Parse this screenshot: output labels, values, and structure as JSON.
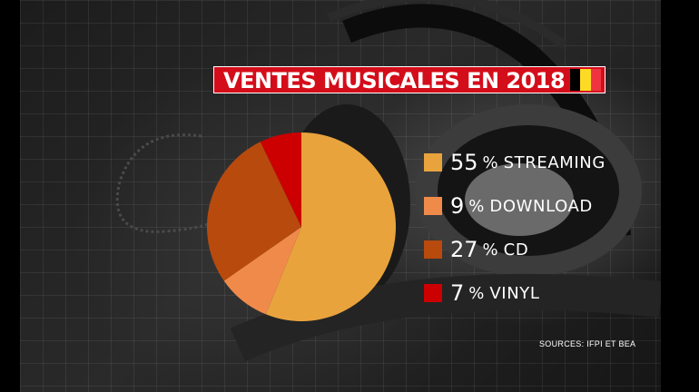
{
  "title": "VENTES MUSICALES EN 2018",
  "flag_colors": [
    "#000000",
    "#fdda24",
    "#ef3340"
  ],
  "source": "SOURCES: IFPI ET BEA",
  "legend": [
    {
      "value": "55",
      "pct": "%",
      "label": "STREAMING",
      "color": "#e8a33d"
    },
    {
      "value": "9",
      "pct": "%",
      "label": "DOWNLOAD",
      "color": "#f08a4b"
    },
    {
      "value": "27",
      "pct": "%",
      "label": "CD",
      "color": "#b84a0e"
    },
    {
      "value": "7",
      "pct": "%",
      "label": "VINYL",
      "color": "#cc0000"
    }
  ],
  "chart_data": {
    "type": "pie",
    "title": "VENTES MUSICALES EN 2018",
    "categories": [
      "STREAMING",
      "DOWNLOAD",
      "CD",
      "VINYL"
    ],
    "values": [
      55,
      9,
      27,
      7
    ],
    "colors": [
      "#e8a33d",
      "#f08a4b",
      "#b84a0e",
      "#cc0000"
    ],
    "legend": "right"
  }
}
